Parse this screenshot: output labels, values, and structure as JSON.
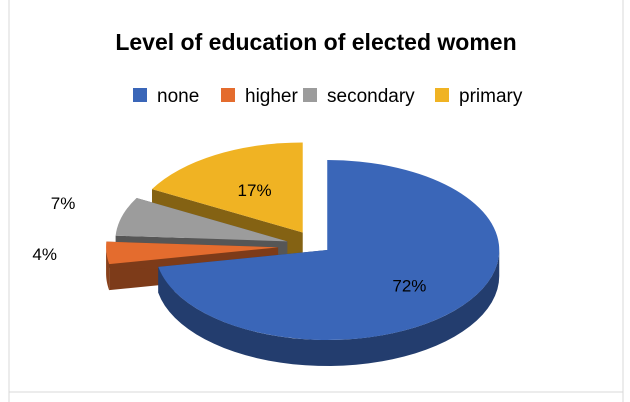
{
  "chart_data": {
    "type": "pie",
    "title": "Level of education of elected women",
    "legend_position": "top",
    "categories": [
      "none",
      "higher",
      "secondary",
      "primary"
    ],
    "values": [
      72,
      4,
      7,
      17
    ],
    "labels": [
      "72%",
      "4%",
      "7%",
      "17%"
    ],
    "colors": [
      "#3A66B8",
      "#E46C2E",
      "#9C9C9C",
      "#F0B323"
    ],
    "exploded": true,
    "three_d": true
  }
}
